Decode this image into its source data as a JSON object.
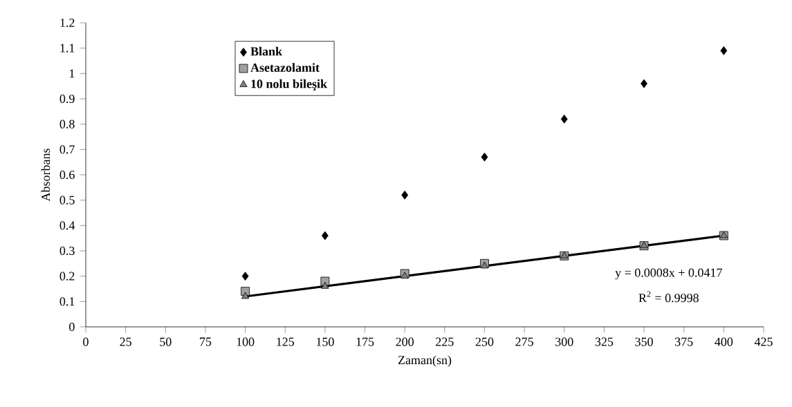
{
  "chart_data": {
    "type": "scatter",
    "xlabel": "Zaman(sn)",
    "ylabel": "Absorbans",
    "xlim": [
      0,
      425
    ],
    "xticks": [
      0,
      25,
      50,
      75,
      100,
      125,
      150,
      175,
      200,
      225,
      250,
      275,
      300,
      325,
      350,
      375,
      400,
      425
    ],
    "ylim": [
      0,
      1.2
    ],
    "yticks": [
      0,
      0.1,
      0.2,
      0.3,
      0.4,
      0.5,
      0.6,
      0.7,
      0.8,
      0.9,
      1,
      1.1,
      1.2
    ],
    "x": [
      100,
      150,
      200,
      250,
      300,
      350,
      400
    ],
    "series": [
      {
        "name": "Blank",
        "color": "#000000",
        "marker": "diamond",
        "values": [
          0.2,
          0.36,
          0.52,
          0.67,
          0.82,
          0.96,
          1.09
        ]
      },
      {
        "name": "Asetazolamit",
        "color": "#a0a0a0",
        "marker": "square",
        "values": [
          0.14,
          0.18,
          0.21,
          0.25,
          0.28,
          0.32,
          0.36
        ]
      },
      {
        "name": "10 nolu bileşik",
        "color": "#808080",
        "marker": "triangle",
        "values": [
          0.12,
          0.16,
          0.2,
          0.24,
          0.28,
          0.32,
          0.36
        ]
      },
      {
        "type": "line",
        "color": "#000000",
        "x": [
          100,
          400
        ],
        "values": [
          0.12,
          0.36
        ]
      }
    ],
    "annotations": [
      "y = 0.0008x + 0.0417",
      "R$^{2}$ = 0.9998"
    ],
    "legend": "top left"
  }
}
